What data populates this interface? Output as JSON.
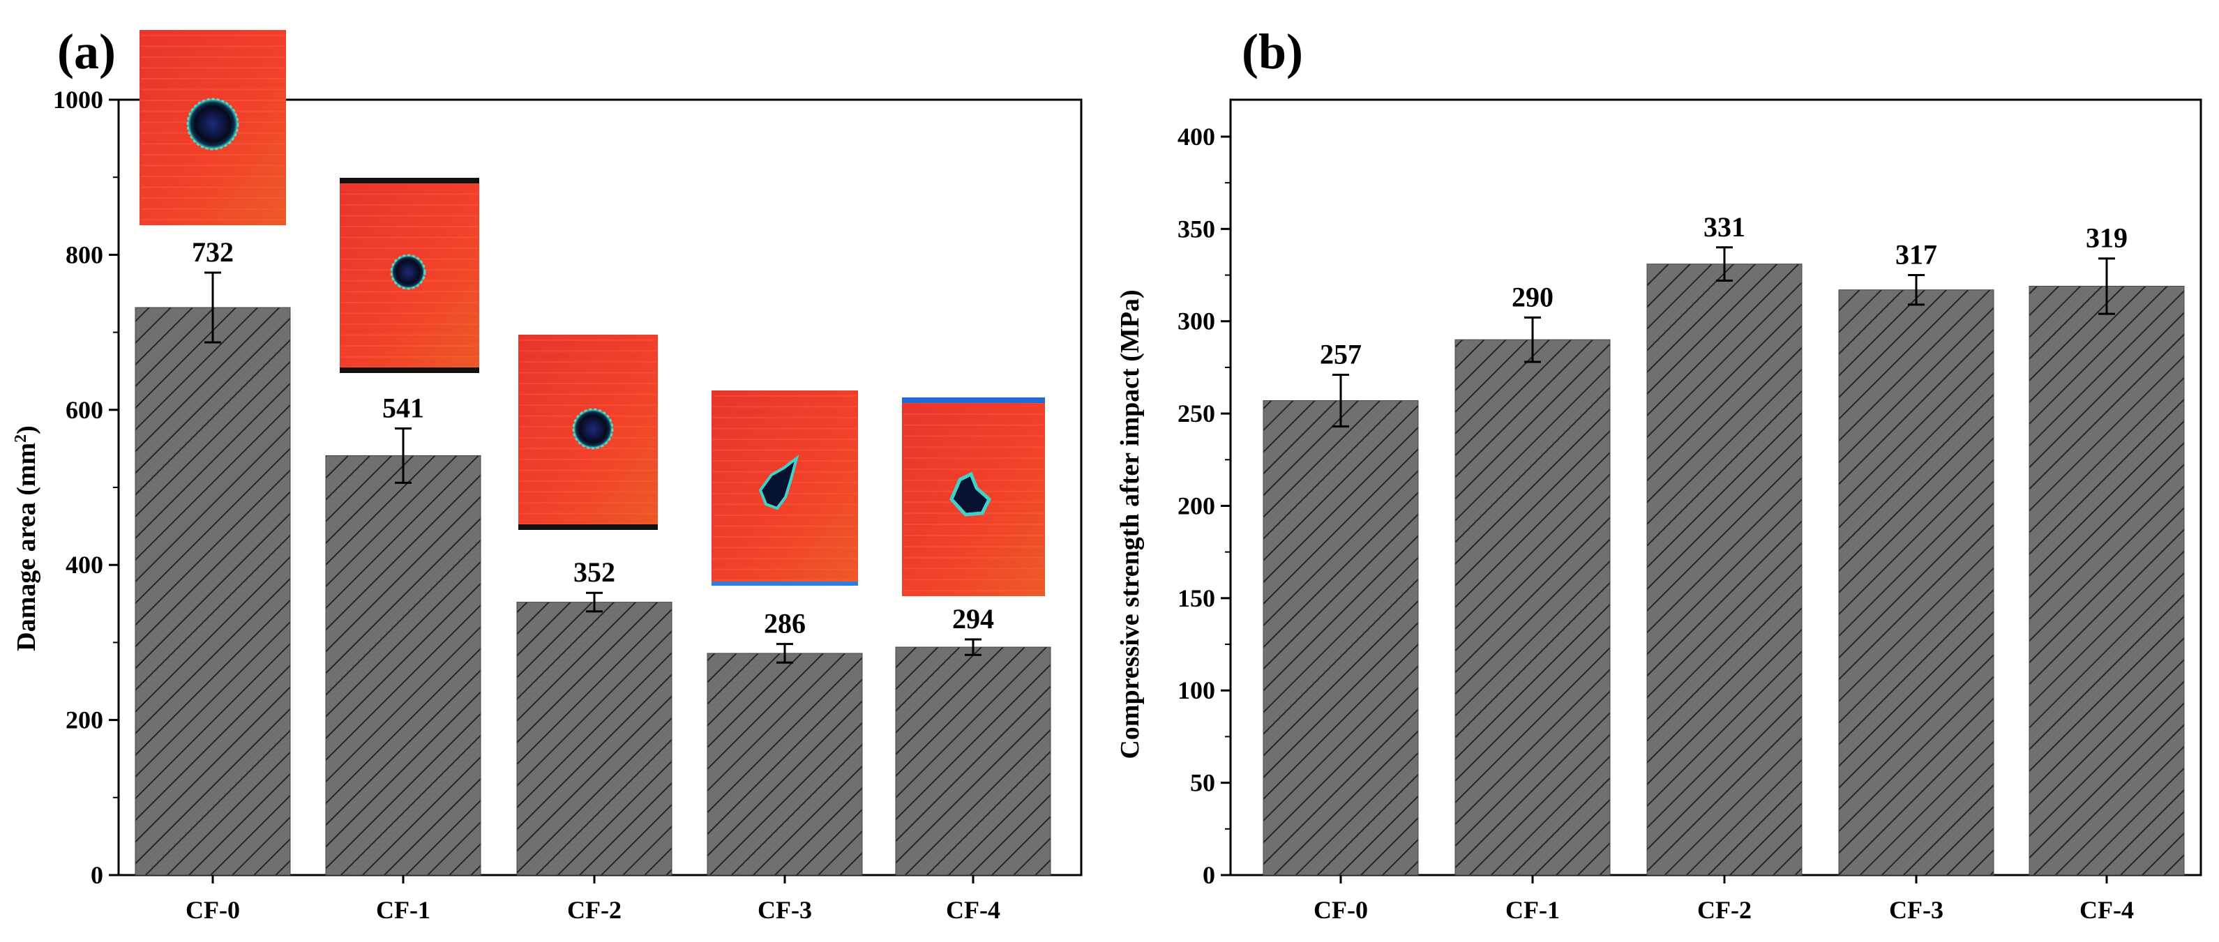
{
  "chart_data": [
    {
      "panel": "(a)",
      "type": "bar",
      "title": "",
      "xlabel": "",
      "ylabel_base": "Damage area (mm",
      "ylabel_sup": "2",
      "ylabel_end": ")",
      "categories": [
        "CF-0",
        "CF-1",
        "CF-2",
        "CF-3",
        "CF-4"
      ],
      "values": [
        732,
        541,
        352,
        286,
        294
      ],
      "value_labels": [
        "732",
        "541",
        "352",
        "286",
        "294"
      ],
      "errors": [
        45,
        35,
        12,
        12,
        10
      ],
      "ylim": [
        0,
        1000
      ],
      "yticks": [
        0,
        200,
        400,
        600,
        800,
        1000
      ],
      "ytick_labels": [
        "0",
        "200",
        "400",
        "600",
        "800",
        "1000"
      ],
      "bar_color": "#6e6e6e",
      "hatch_color": "#222222",
      "inset_images": "C-scan damage maps above each bar",
      "inset_colors": {
        "base": "#e8302a",
        "hole": "#0b1430",
        "rim": "#3fd2c8"
      }
    },
    {
      "panel": "(b)",
      "type": "bar",
      "title": "",
      "xlabel": "",
      "ylabel": "Compressive strength after impact  (MPa)",
      "categories": [
        "CF-0",
        "CF-1",
        "CF-2",
        "CF-3",
        "CF-4"
      ],
      "values": [
        257,
        290,
        331,
        317,
        319
      ],
      "value_labels": [
        "257",
        "290",
        "331",
        "317",
        "319"
      ],
      "errors": [
        14,
        12,
        9,
        8,
        15
      ],
      "ylim": [
        0,
        420
      ],
      "yticks": [
        0,
        50,
        100,
        150,
        200,
        250,
        300,
        350,
        400
      ],
      "ytick_labels": [
        "0",
        "50",
        "100",
        "150",
        "200",
        "250",
        "300",
        "350",
        "400"
      ],
      "bar_color": "#6e6e6e",
      "hatch_color": "#222222"
    }
  ]
}
